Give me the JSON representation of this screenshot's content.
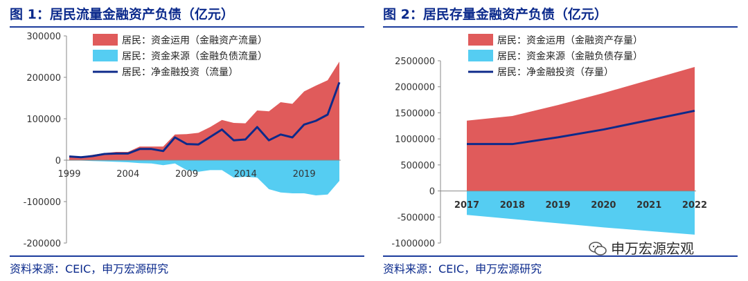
{
  "figure1": {
    "title": "图 1：居民流量金融资产负债（亿元）",
    "source": "资料来源：CEIC，申万宏源研究"
  },
  "figure2": {
    "title": "图 2：居民存量金融资产负债（亿元）",
    "source": "资料来源：CEIC，申万宏源研究"
  },
  "watermark": "申万宏源宏观",
  "chart_data": [
    {
      "type": "area",
      "title": "图 1：居民流量金融资产负债（亿元）",
      "x": [
        1999,
        2000,
        2001,
        2002,
        2003,
        2004,
        2005,
        2006,
        2007,
        2008,
        2009,
        2010,
        2011,
        2012,
        2013,
        2014,
        2015,
        2016,
        2017,
        2018,
        2019,
        2020,
        2021,
        2022
      ],
      "x_ticks": [
        1999,
        2004,
        2009,
        2014,
        2019
      ],
      "ylim": [
        -200000,
        300000
      ],
      "y_ticks": [
        300000,
        200000,
        100000,
        0,
        -100000,
        -200000
      ],
      "series": [
        {
          "name": "居民：资金运用（金融资产流量）",
          "kind": "area",
          "color": "#e05b5b",
          "values": [
            10000,
            8000,
            13000,
            17000,
            20000,
            20000,
            33000,
            33000,
            33000,
            62000,
            63000,
            66000,
            80000,
            97000,
            90000,
            89000,
            120000,
            118000,
            140000,
            136000,
            166000,
            180000,
            193000,
            238000
          ]
        },
        {
          "name": "居民：资金来源（金融负债流量）",
          "kind": "area",
          "color": "#55cdf2",
          "values": [
            -1000,
            -1000,
            -2000,
            -3000,
            -4000,
            -5000,
            -7000,
            -8000,
            -12000,
            -8000,
            -24000,
            -28000,
            -24000,
            -24000,
            -42000,
            -40000,
            -42000,
            -70000,
            -78000,
            -80000,
            -80000,
            -85000,
            -83000,
            -50000
          ]
        },
        {
          "name": "居民：净金融投资（流量）",
          "kind": "line",
          "color": "#0d2a8a",
          "values": [
            9000,
            7000,
            10000,
            15000,
            16000,
            16000,
            27000,
            27000,
            22000,
            55000,
            39000,
            38000,
            56000,
            74000,
            48000,
            50000,
            80000,
            48000,
            62000,
            55000,
            86000,
            95000,
            110000,
            188000
          ]
        }
      ]
    },
    {
      "type": "area",
      "title": "图 2：居民存量金融资产负债（亿元）",
      "x": [
        2017,
        2018,
        2019,
        2020,
        2021,
        2022
      ],
      "ylim": [
        -1000000,
        2500000
      ],
      "y_ticks": [
        2500000,
        2000000,
        1500000,
        1000000,
        500000,
        0,
        -500000,
        -1000000
      ],
      "series": [
        {
          "name": "居民：资金运用（金融资产存量）",
          "kind": "area",
          "color": "#e05b5b",
          "values": [
            1350000,
            1440000,
            1650000,
            1880000,
            2130000,
            2380000
          ]
        },
        {
          "name": "居民：资金来源（金融负债存量）",
          "kind": "area",
          "color": "#55cdf2",
          "values": [
            -460000,
            -540000,
            -620000,
            -700000,
            -770000,
            -840000
          ]
        },
        {
          "name": "居民：净金融投资（存量）",
          "kind": "line",
          "color": "#0d2a8a",
          "values": [
            900000,
            900000,
            1030000,
            1180000,
            1360000,
            1540000
          ]
        }
      ]
    }
  ]
}
